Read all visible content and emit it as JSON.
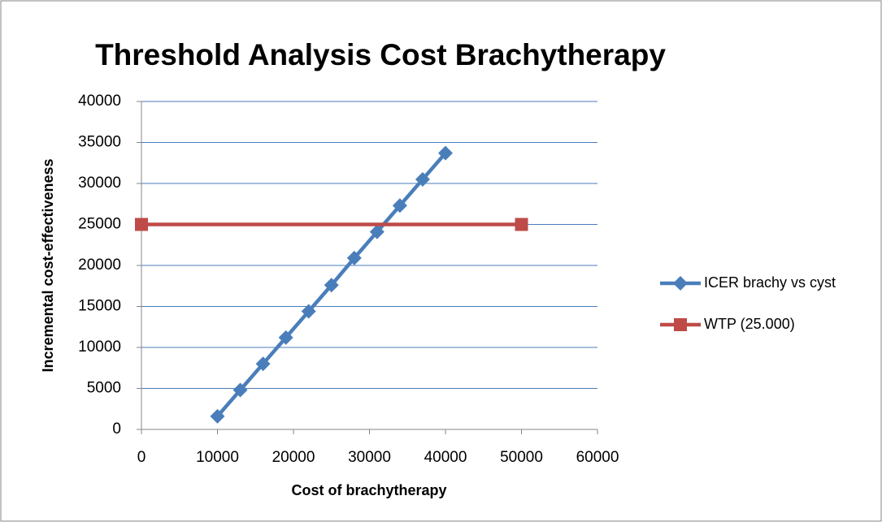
{
  "chart_data": {
    "type": "scatter",
    "title": "Threshold Analysis Cost Brachytherapy",
    "xlabel": "Cost of brachytherapy",
    "ylabel": "Incremental cost-effectiveness",
    "series": [
      {
        "name": "ICER brachy vs cyst",
        "color": "#4a7ebb",
        "marker": "diamond",
        "x": [
          10000,
          13000,
          16000,
          19000,
          22000,
          25000,
          28000,
          31000,
          34000,
          37000,
          40000
        ],
        "values": [
          1600,
          4800,
          8000,
          11200,
          14400,
          17600,
          20900,
          24100,
          27300,
          30500,
          33700
        ]
      },
      {
        "name": "WTP (25.000)",
        "color": "#be4b48",
        "marker": "square",
        "x": [
          0,
          50000
        ],
        "values": [
          25000,
          25000
        ]
      }
    ],
    "xlim": [
      0,
      60000
    ],
    "xticks": [
      0,
      10000,
      20000,
      30000,
      40000,
      50000,
      60000
    ],
    "ylim": [
      0,
      40000
    ],
    "yticks": [
      0,
      5000,
      10000,
      15000,
      20000,
      25000,
      30000,
      35000,
      40000
    ],
    "grid": true,
    "legend": "right"
  }
}
